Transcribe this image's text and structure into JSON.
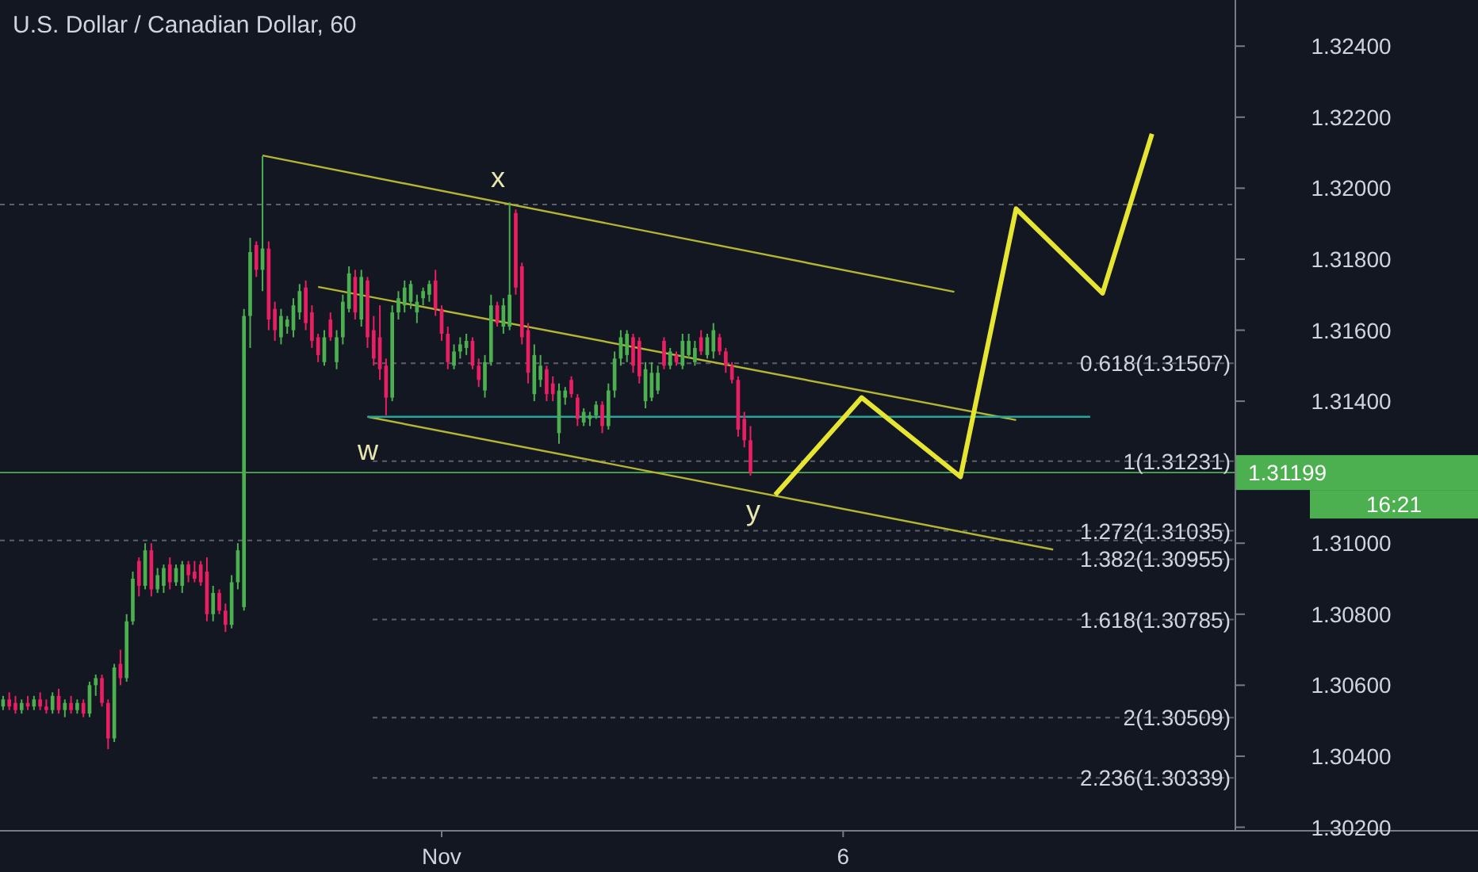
{
  "chart_data": {
    "type": "candlestick",
    "title": "U.S. Dollar / Canadian Dollar, 60",
    "categories": [
      null,
      null,
      null,
      null,
      null,
      null,
      null,
      null,
      null,
      null,
      null,
      null,
      null,
      null,
      null,
      null,
      null,
      null,
      null,
      null,
      null,
      null,
      null,
      null,
      null,
      null,
      null,
      null,
      null,
      null,
      null,
      null,
      null,
      null,
      null,
      null,
      null,
      null,
      null,
      null,
      null,
      null,
      null,
      null,
      null,
      null,
      null,
      null,
      null,
      null,
      null,
      null,
      null,
      null,
      null,
      null,
      null,
      null,
      null,
      null,
      null,
      null,
      null,
      null,
      null,
      null,
      null,
      null,
      null,
      null,
      null,
      "Nov",
      null,
      null,
      null,
      null,
      null,
      null,
      null,
      null,
      null,
      null,
      null,
      null,
      null,
      null,
      null,
      null,
      null,
      null,
      null,
      null,
      null,
      null,
      null,
      null,
      null,
      null,
      null,
      null,
      null,
      null,
      null,
      null,
      null,
      null,
      null,
      null,
      null,
      null,
      null,
      null,
      null,
      null,
      null,
      null,
      null,
      null,
      null,
      null,
      null,
      null,
      null,
      null,
      null,
      null,
      null,
      null,
      null,
      null,
      null,
      null,
      null,
      null,
      null,
      null,
      "6",
      null,
      null,
      null,
      null,
      null,
      null,
      null,
      null,
      null,
      null,
      null,
      null,
      null,
      null,
      null,
      null,
      null,
      null,
      null,
      null,
      null,
      null,
      null,
      null,
      null,
      null,
      null,
      null,
      null,
      null,
      null,
      null,
      null,
      null,
      null,
      null,
      null,
      null,
      null,
      null,
      null,
      null,
      null,
      null,
      null,
      null,
      null,
      null,
      null,
      null,
      null,
      null,
      null,
      null,
      null,
      null,
      null,
      null,
      null,
      null,
      null,
      null,
      null
    ],
    "ohlc": [
      [
        1.3054,
        1.3057,
        1.3053,
        1.3056
      ],
      [
        1.3056,
        1.3058,
        1.3053,
        1.3054
      ],
      [
        1.3055,
        1.3057,
        1.3052,
        1.3053
      ],
      [
        1.3053,
        1.3056,
        1.3052,
        1.3055
      ],
      [
        1.3055,
        1.3057,
        1.3053,
        1.3054
      ],
      [
        1.3054,
        1.3057,
        1.3053,
        1.3056
      ],
      [
        1.3056,
        1.3058,
        1.3053,
        1.3054
      ],
      [
        1.3054,
        1.3056,
        1.3052,
        1.3053
      ],
      [
        1.3053,
        1.3058,
        1.3052,
        1.3057
      ],
      [
        1.3057,
        1.3059,
        1.3052,
        1.3053
      ],
      [
        1.3053,
        1.3056,
        1.3051,
        1.3055
      ],
      [
        1.3055,
        1.3057,
        1.3052,
        1.3053
      ],
      [
        1.3053,
        1.3056,
        1.3052,
        1.3055
      ],
      [
        1.3055,
        1.3056,
        1.3051,
        1.3052
      ],
      [
        1.3052,
        1.3061,
        1.3051,
        1.306
      ],
      [
        1.306,
        1.3063,
        1.3057,
        1.3062
      ],
      [
        1.3062,
        1.3063,
        1.3054,
        1.3055
      ],
      [
        1.3055,
        1.3056,
        1.3042,
        1.3045
      ],
      [
        1.3045,
        1.3066,
        1.3044,
        1.3065
      ],
      [
        1.3066,
        1.307,
        1.306,
        1.3062
      ],
      [
        1.3062,
        1.308,
        1.3061,
        1.3078
      ],
      [
        1.3078,
        1.3092,
        1.3077,
        1.309
      ],
      [
        1.3095,
        1.3096,
        1.3085,
        1.3088
      ],
      [
        1.3088,
        1.31,
        1.3087,
        1.3098
      ],
      [
        1.3098,
        1.31,
        1.3085,
        1.3087
      ],
      [
        1.3087,
        1.3093,
        1.3086,
        1.3091
      ],
      [
        1.3088,
        1.3094,
        1.3086,
        1.3093
      ],
      [
        1.3094,
        1.3096,
        1.3087,
        1.3089
      ],
      [
        1.3089,
        1.3094,
        1.3088,
        1.3093
      ],
      [
        1.3088,
        1.3095,
        1.3086,
        1.3094
      ],
      [
        1.3094,
        1.3095,
        1.3089,
        1.3091
      ],
      [
        1.3092,
        1.3095,
        1.3089,
        1.309
      ],
      [
        1.3094,
        1.3095,
        1.3088,
        1.3089
      ],
      [
        1.3092,
        1.3096,
        1.3078,
        1.308
      ],
      [
        1.308,
        1.3088,
        1.3078,
        1.3086
      ],
      [
        1.3086,
        1.3087,
        1.308,
        1.3081
      ],
      [
        1.3081,
        1.3083,
        1.3075,
        1.3077
      ],
      [
        1.3077,
        1.3091,
        1.3076,
        1.3089
      ],
      [
        1.3089,
        1.31,
        1.3087,
        1.3098
      ],
      [
        1.3082,
        1.3166,
        1.3081,
        1.3164
      ],
      [
        1.3164,
        1.3186,
        1.3155,
        1.3182
      ],
      [
        1.3184,
        1.3185,
        1.3175,
        1.3177
      ],
      [
        1.3177,
        1.3209,
        1.3171,
        1.3183
      ],
      [
        1.3183,
        1.3185,
        1.316,
        1.3163
      ],
      [
        1.3166,
        1.3168,
        1.3157,
        1.316
      ],
      [
        1.3158,
        1.3166,
        1.3156,
        1.3164
      ],
      [
        1.3161,
        1.3164,
        1.3159,
        1.3163
      ],
      [
        1.316,
        1.3169,
        1.3158,
        1.3167
      ],
      [
        1.3165,
        1.3173,
        1.3163,
        1.3171
      ],
      [
        1.3172,
        1.3174,
        1.316,
        1.3162
      ],
      [
        1.3165,
        1.3167,
        1.3155,
        1.3157
      ],
      [
        1.3158,
        1.3159,
        1.3151,
        1.3153
      ],
      [
        1.3151,
        1.316,
        1.315,
        1.3158
      ],
      [
        1.3163,
        1.3165,
        1.3157,
        1.3158
      ],
      [
        1.3151,
        1.316,
        1.3149,
        1.3158
      ],
      [
        1.3158,
        1.317,
        1.3156,
        1.3168
      ],
      [
        1.3166,
        1.3178,
        1.3165,
        1.3176
      ],
      [
        1.3175,
        1.3177,
        1.3163,
        1.3165
      ],
      [
        1.3163,
        1.3177,
        1.3161,
        1.3175
      ],
      [
        1.3174,
        1.3175,
        1.3155,
        1.3158
      ],
      [
        1.316,
        1.3164,
        1.315,
        1.3152
      ],
      [
        1.3158,
        1.3167,
        1.3146,
        1.3149
      ],
      [
        1.315,
        1.3152,
        1.3136,
        1.3141
      ],
      [
        1.3141,
        1.3167,
        1.314,
        1.3165
      ],
      [
        1.3165,
        1.3171,
        1.3163,
        1.3169
      ],
      [
        1.3167,
        1.3174,
        1.3165,
        1.3172
      ],
      [
        1.3168,
        1.3174,
        1.3166,
        1.3173
      ],
      [
        1.3165,
        1.317,
        1.3162,
        1.3168
      ],
      [
        1.3169,
        1.3172,
        1.3167,
        1.3171
      ],
      [
        1.317,
        1.3174,
        1.3168,
        1.3173
      ],
      [
        1.3174,
        1.3177,
        1.3164,
        1.3166
      ],
      [
        1.3166,
        1.3167,
        1.3157,
        1.3159
      ],
      [
        1.3159,
        1.3161,
        1.3149,
        1.3151
      ],
      [
        1.315,
        1.3156,
        1.3149,
        1.3154
      ],
      [
        1.3154,
        1.3158,
        1.3152,
        1.3156
      ],
      [
        1.3155,
        1.3159,
        1.3153,
        1.3157
      ],
      [
        1.3157,
        1.3158,
        1.3149,
        1.315
      ],
      [
        1.315,
        1.3152,
        1.3144,
        1.3146
      ],
      [
        1.3143,
        1.3153,
        1.3141,
        1.3151
      ],
      [
        1.3151,
        1.317,
        1.315,
        1.3167
      ],
      [
        1.3167,
        1.3168,
        1.3161,
        1.3162
      ],
      [
        1.3161,
        1.3169,
        1.3159,
        1.3167
      ],
      [
        1.3161,
        1.3196,
        1.316,
        1.317
      ],
      [
        1.3193,
        1.3194,
        1.317,
        1.3172
      ],
      [
        1.3178,
        1.3179,
        1.3156,
        1.3158
      ],
      [
        1.316,
        1.3162,
        1.3145,
        1.3148
      ],
      [
        1.3142,
        1.3156,
        1.314,
        1.3153
      ],
      [
        1.3146,
        1.3153,
        1.3144,
        1.315
      ],
      [
        1.3149,
        1.315,
        1.314,
        1.3142
      ],
      [
        1.3145,
        1.3147,
        1.314,
        1.3142
      ],
      [
        1.3131,
        1.3145,
        1.3128,
        1.3143
      ],
      [
        1.3141,
        1.3144,
        1.3139,
        1.3143
      ],
      [
        1.3146,
        1.3147,
        1.3141,
        1.3142
      ],
      [
        1.3141,
        1.3142,
        1.3133,
        1.3135
      ],
      [
        1.3134,
        1.3138,
        1.3133,
        1.3137
      ],
      [
        1.3135,
        1.3137,
        1.3133,
        1.3136
      ],
      [
        1.3136,
        1.314,
        1.3135,
        1.3139
      ],
      [
        1.3139,
        1.314,
        1.3131,
        1.3133
      ],
      [
        1.3133,
        1.3145,
        1.3132,
        1.3143
      ],
      [
        1.3143,
        1.3154,
        1.3141,
        1.3152
      ],
      [
        1.3152,
        1.316,
        1.315,
        1.3158
      ],
      [
        1.3153,
        1.316,
        1.3151,
        1.3159
      ],
      [
        1.3158,
        1.3159,
        1.3148,
        1.315
      ],
      [
        1.3157,
        1.3158,
        1.3145,
        1.3147
      ],
      [
        1.314,
        1.3151,
        1.3138,
        1.3149
      ],
      [
        1.3141,
        1.3151,
        1.314,
        1.3148
      ],
      [
        1.3143,
        1.315,
        1.3142,
        1.3148
      ],
      [
        1.3157,
        1.3158,
        1.3149,
        1.315
      ],
      [
        1.315,
        1.3155,
        1.3149,
        1.3154
      ],
      [
        1.3153,
        1.3154,
        1.315,
        1.3151
      ],
      [
        1.315,
        1.3159,
        1.3149,
        1.3157
      ],
      [
        1.3153,
        1.3159,
        1.3152,
        1.3157
      ],
      [
        1.3151,
        1.3157,
        1.315,
        1.3155
      ],
      [
        1.3158,
        1.316,
        1.3153,
        1.3154
      ],
      [
        1.3153,
        1.3159,
        1.3152,
        1.3158
      ],
      [
        1.3154,
        1.3162,
        1.3152,
        1.316
      ],
      [
        1.3158,
        1.3159,
        1.3153,
        1.3154
      ],
      [
        1.3154,
        1.3155,
        1.3148,
        1.315
      ],
      [
        1.315,
        1.3151,
        1.3145,
        1.3146
      ],
      [
        1.3146,
        1.3147,
        1.313,
        1.3132
      ],
      [
        1.3135,
        1.3137,
        1.3127,
        1.3129
      ],
      [
        1.3129,
        1.3133,
        1.3119,
        1.312
      ],
      null,
      null,
      null,
      null,
      null,
      null,
      null,
      null,
      null,
      null,
      null,
      null,
      null,
      null,
      null,
      null,
      null,
      null,
      null,
      null,
      null,
      null,
      null,
      null,
      null,
      null,
      null,
      null,
      null,
      null,
      null,
      null,
      null,
      null,
      null,
      null,
      null,
      null,
      null,
      null,
      null,
      null,
      null,
      null,
      null,
      null,
      null,
      null,
      null,
      null,
      null,
      null,
      null,
      null,
      null,
      null,
      null,
      null,
      null,
      null,
      null,
      null,
      null,
      null,
      null,
      null,
      null,
      null,
      null,
      null,
      null,
      null,
      null,
      null,
      null,
      null,
      null,
      null
    ],
    "series": [
      {
        "type": "line",
        "color": "#b5b534",
        "values": [
          null,
          null,
          null,
          null,
          null,
          null,
          null,
          null,
          null,
          null,
          null,
          null,
          null,
          null,
          null,
          null,
          null,
          null,
          null,
          null,
          null,
          null,
          null,
          null,
          null,
          null,
          null,
          null,
          null,
          null,
          null,
          null,
          null,
          null,
          null,
          null,
          null,
          null,
          null,
          null,
          null,
          null,
          1.32092,
          null,
          null,
          null,
          null,
          null,
          null,
          null,
          null,
          null,
          null,
          null,
          null,
          null,
          null,
          null,
          null,
          null,
          null,
          null,
          null,
          null,
          null,
          null,
          null,
          null,
          null,
          null,
          null,
          null,
          null,
          null,
          null,
          null,
          null,
          null,
          null,
          null,
          null,
          null,
          null,
          null,
          null,
          null,
          null,
          null,
          null,
          null,
          null,
          null,
          null,
          null,
          null,
          null,
          null,
          null,
          null,
          null,
          null,
          null,
          null,
          null,
          null,
          null,
          null,
          null,
          null,
          null,
          null,
          null,
          null,
          null,
          null,
          null,
          null,
          null,
          null,
          null,
          null,
          null,
          null,
          null,
          null,
          null,
          null,
          null,
          null,
          null,
          null,
          null,
          null,
          null,
          null,
          null,
          null,
          null,
          null,
          null,
          null,
          null,
          null,
          null,
          null,
          null,
          null,
          null,
          null,
          null,
          null,
          null,
          null,
          null,
          1.31708,
          null,
          null,
          null,
          null,
          null,
          null,
          null,
          null,
          null,
          null,
          null,
          null,
          null,
          null,
          null,
          null,
          null,
          null,
          null,
          null,
          null,
          null,
          null,
          null,
          null,
          null,
          null,
          null,
          null,
          null,
          null,
          null,
          null,
          null,
          null,
          null,
          null,
          null,
          null,
          null,
          null,
          null,
          null,
          null,
          null
        ]
      },
      {
        "type": "line",
        "color": "#b5b534",
        "values": [
          null,
          null,
          null,
          null,
          null,
          null,
          null,
          null,
          null,
          null,
          null,
          null,
          null,
          null,
          null,
          null,
          null,
          null,
          null,
          null,
          null,
          null,
          null,
          null,
          null,
          null,
          null,
          null,
          null,
          null,
          null,
          null,
          null,
          null,
          null,
          null,
          null,
          null,
          null,
          null,
          null,
          null,
          null,
          null,
          null,
          null,
          null,
          null,
          null,
          null,
          null,
          1.31722,
          null,
          null,
          null,
          null,
          null,
          null,
          null,
          null,
          null,
          null,
          null,
          null,
          null,
          null,
          null,
          null,
          null,
          null,
          null,
          null,
          null,
          null,
          null,
          null,
          null,
          null,
          null,
          null,
          null,
          null,
          null,
          null,
          null,
          null,
          null,
          null,
          null,
          null,
          null,
          null,
          null,
          null,
          null,
          null,
          null,
          null,
          null,
          null,
          null,
          null,
          null,
          null,
          null,
          null,
          null,
          null,
          null,
          null,
          null,
          null,
          null,
          null,
          null,
          null,
          null,
          null,
          null,
          null,
          null,
          null,
          null,
          null,
          null,
          null,
          null,
          null,
          null,
          null,
          null,
          null,
          null,
          null,
          null,
          null,
          null,
          null,
          null,
          null,
          null,
          null,
          null,
          null,
          null,
          null,
          null,
          null,
          null,
          null,
          null,
          null,
          null,
          null,
          null,
          null,
          null,
          null,
          null,
          null,
          null,
          null,
          null,
          null,
          1.31347,
          null,
          null,
          null,
          null,
          null,
          null,
          null,
          null,
          null,
          null,
          null,
          null,
          null,
          null,
          null,
          null,
          null,
          null,
          null,
          null,
          null,
          null,
          null,
          null,
          null,
          null,
          null,
          null,
          null,
          null,
          null,
          null,
          null,
          null,
          null
        ]
      },
      {
        "type": "line",
        "color": "#b5b534",
        "values": [
          null,
          null,
          null,
          null,
          null,
          null,
          null,
          null,
          null,
          null,
          null,
          null,
          null,
          null,
          null,
          null,
          null,
          null,
          null,
          null,
          null,
          null,
          null,
          null,
          null,
          null,
          null,
          null,
          null,
          null,
          null,
          null,
          null,
          null,
          null,
          null,
          null,
          null,
          null,
          null,
          null,
          null,
          null,
          null,
          null,
          null,
          null,
          null,
          null,
          null,
          null,
          null,
          null,
          null,
          null,
          null,
          null,
          null,
          null,
          1.31356,
          null,
          null,
          null,
          null,
          null,
          null,
          null,
          null,
          null,
          null,
          null,
          null,
          null,
          null,
          null,
          null,
          null,
          null,
          null,
          null,
          null,
          null,
          null,
          null,
          null,
          null,
          null,
          null,
          null,
          null,
          null,
          null,
          null,
          null,
          null,
          null,
          null,
          null,
          null,
          null,
          null,
          null,
          null,
          null,
          null,
          null,
          null,
          null,
          null,
          null,
          null,
          null,
          null,
          null,
          null,
          null,
          null,
          null,
          null,
          null,
          null,
          null,
          null,
          null,
          null,
          null,
          null,
          null,
          null,
          null,
          null,
          null,
          null,
          null,
          null,
          null,
          null,
          null,
          null,
          null,
          null,
          null,
          null,
          null,
          null,
          null,
          null,
          null,
          null,
          null,
          null,
          null,
          null,
          null,
          null,
          null,
          null,
          null,
          null,
          null,
          null,
          null,
          null,
          null,
          null,
          null,
          null,
          null,
          null,
          null,
          1.30982,
          null,
          null,
          null,
          null,
          null,
          null,
          null,
          null,
          null,
          null,
          null,
          null,
          null,
          null,
          null,
          null,
          null,
          null,
          null,
          null,
          null,
          null,
          null,
          null,
          null,
          null,
          null,
          null,
          null
        ]
      },
      {
        "type": "line",
        "color": "#26a69a",
        "values": [
          null,
          null,
          null,
          null,
          null,
          null,
          null,
          null,
          null,
          null,
          null,
          null,
          null,
          null,
          null,
          null,
          null,
          null,
          null,
          null,
          null,
          null,
          null,
          null,
          null,
          null,
          null,
          null,
          null,
          null,
          null,
          null,
          null,
          null,
          null,
          null,
          null,
          null,
          null,
          null,
          null,
          null,
          null,
          null,
          null,
          null,
          null,
          null,
          null,
          null,
          null,
          null,
          null,
          null,
          null,
          null,
          null,
          null,
          null,
          1.31356,
          null,
          null,
          null,
          null,
          null,
          null,
          null,
          null,
          null,
          null,
          null,
          null,
          null,
          null,
          null,
          null,
          null,
          null,
          null,
          null,
          null,
          null,
          null,
          null,
          null,
          null,
          null,
          null,
          null,
          null,
          null,
          null,
          null,
          null,
          null,
          null,
          null,
          null,
          null,
          null,
          null,
          null,
          null,
          null,
          null,
          null,
          null,
          null,
          null,
          null,
          null,
          null,
          null,
          null,
          null,
          null,
          null,
          null,
          null,
          null,
          null,
          null,
          null,
          null,
          null,
          null,
          null,
          null,
          null,
          null,
          null,
          null,
          null,
          null,
          null,
          null,
          null,
          null,
          null,
          null,
          null,
          null,
          null,
          null,
          null,
          null,
          null,
          null,
          null,
          null,
          null,
          null,
          null,
          null,
          null,
          null,
          null,
          null,
          null,
          null,
          null,
          null,
          null,
          null,
          null,
          null,
          null,
          null,
          null,
          null,
          null,
          null,
          null,
          null,
          null,
          null,
          1.31356,
          null,
          null,
          null,
          null,
          null,
          null,
          null,
          null,
          null,
          null,
          null,
          null,
          null,
          null,
          null,
          null,
          null,
          null,
          null,
          null,
          null,
          null,
          null
        ]
      },
      {
        "type": "line",
        "color": "#e6e632",
        "values": [
          null,
          null,
          null,
          null,
          null,
          null,
          null,
          null,
          null,
          null,
          null,
          null,
          null,
          null,
          null,
          null,
          null,
          null,
          null,
          null,
          null,
          null,
          null,
          null,
          null,
          null,
          null,
          null,
          null,
          null,
          null,
          null,
          null,
          null,
          null,
          null,
          null,
          null,
          null,
          null,
          null,
          null,
          null,
          null,
          null,
          null,
          null,
          null,
          null,
          null,
          null,
          null,
          null,
          null,
          null,
          null,
          null,
          null,
          null,
          null,
          null,
          null,
          null,
          null,
          null,
          null,
          null,
          null,
          null,
          null,
          null,
          null,
          null,
          null,
          null,
          null,
          null,
          null,
          null,
          null,
          null,
          null,
          null,
          null,
          null,
          null,
          null,
          null,
          null,
          null,
          null,
          null,
          null,
          null,
          null,
          null,
          null,
          null,
          null,
          null,
          null,
          null,
          null,
          null,
          null,
          null,
          null,
          null,
          null,
          null,
          null,
          null,
          null,
          null,
          null,
          null,
          null,
          null,
          null,
          null,
          null,
          null,
          null,
          null,
          null,
          1.31136,
          null,
          null,
          null,
          null,
          null,
          null,
          null,
          null,
          null,
          null,
          null,
          null,
          null,
          1.3141,
          null,
          null,
          null,
          null,
          null,
          null,
          null,
          null,
          null,
          null,
          null,
          null,
          null,
          null,
          null,
          1.31187,
          null,
          null,
          null,
          null,
          null,
          null,
          null,
          null,
          1.31942,
          null,
          null,
          null,
          null,
          null,
          null,
          null,
          null,
          null,
          null,
          null,
          null,
          null,
          1.31704,
          null,
          null,
          null,
          null,
          null,
          null,
          null,
          1.32153,
          null,
          null,
          null,
          null,
          null,
          null,
          null,
          null,
          null,
          null,
          null,
          null,
          null
        ]
      }
    ],
    "ylim": [
      1.3019,
      1.3253
    ],
    "yticks": [
      {
        "value": 1.302,
        "label": "1.30200"
      },
      {
        "value": 1.304,
        "label": "1.30400"
      },
      {
        "value": 1.306,
        "label": "1.30600"
      },
      {
        "value": 1.308,
        "label": "1.30800"
      },
      {
        "value": 1.31,
        "label": "1.31000"
      },
      {
        "value": 1.314,
        "label": "1.31400"
      },
      {
        "value": 1.316,
        "label": "1.31600"
      },
      {
        "value": 1.318,
        "label": "1.31800"
      },
      {
        "value": 1.32,
        "label": "1.32000"
      },
      {
        "value": 1.322,
        "label": "1.32200"
      },
      {
        "value": 1.324,
        "label": "1.32400"
      }
    ],
    "ref_lines": [
      {
        "axis": "y",
        "value": 1.31954,
        "label": null,
        "line_style": "dashed",
        "color": "#5d606b"
      },
      {
        "axis": "y",
        "value": 1.31008,
        "label": null,
        "line_style": "dashed",
        "color": "#5d606b"
      },
      {
        "axis": "y",
        "value": 1.31507,
        "label": "0.618(1.31507)",
        "line_style": "dashed",
        "color": "#5d606b"
      },
      {
        "axis": "y",
        "value": 1.31231,
        "label": "1(1.31231)",
        "line_style": "dashed",
        "color": "#5d606b"
      },
      {
        "axis": "y",
        "value": 1.31035,
        "label": "1.272(1.31035)",
        "line_style": "dashed",
        "color": "#5d606b"
      },
      {
        "axis": "y",
        "value": 1.30955,
        "label": "1.382(1.30955)",
        "line_style": "dashed",
        "color": "#5d606b"
      },
      {
        "axis": "y",
        "value": 1.30785,
        "label": "1.618(1.30785)",
        "line_style": "dashed",
        "color": "#5d606b"
      },
      {
        "axis": "y",
        "value": 1.30509,
        "label": "2(1.30509)",
        "line_style": "dashed",
        "color": "#5d606b"
      },
      {
        "axis": "y",
        "value": 1.30339,
        "label": "2.236(1.30339)",
        "line_style": "dashed",
        "color": "#5d606b"
      },
      {
        "axis": "y",
        "value": 1.31199,
        "label": "1.31199",
        "line_style": "solid",
        "color": "#4caf50"
      }
    ],
    "annotations": [
      "w",
      "x",
      "y",
      "16:21"
    ]
  }
}
